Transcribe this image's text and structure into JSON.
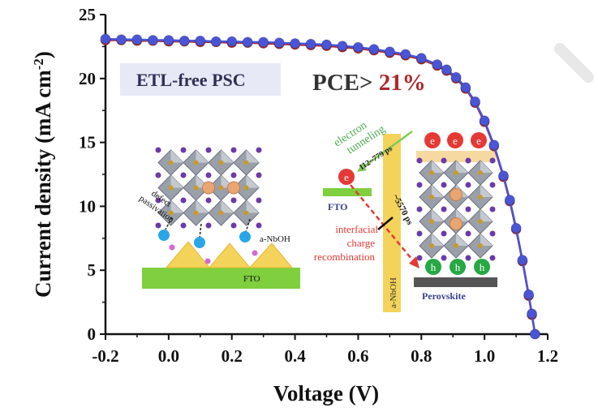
{
  "chart_data": {
    "type": "scatter",
    "xlabel": "Voltage (V)",
    "ylabel_main": "Current density (mA cm",
    "ylabel_sup": "-2",
    "ylabel_close": ")",
    "xlim": [
      -0.2,
      1.2
    ],
    "ylim": [
      0,
      25
    ],
    "xticks": [
      -0.2,
      0.0,
      0.2,
      0.4,
      0.6,
      0.8,
      1.0,
      1.2
    ],
    "xtick_labels": [
      "-0.2",
      "0.0",
      "0.2",
      "0.4",
      "0.6",
      "0.8",
      "1.0",
      "1.2"
    ],
    "yticks": [
      0,
      5,
      10,
      15,
      20,
      25
    ],
    "ytick_labels": [
      "0",
      "5",
      "10",
      "15",
      "20",
      "25"
    ],
    "grid": false,
    "series": [
      {
        "color": "#b0282c",
        "x": [
          -0.2,
          -0.15,
          -0.1,
          -0.05,
          0.0,
          0.05,
          0.1,
          0.15,
          0.2,
          0.25,
          0.3,
          0.35,
          0.4,
          0.45,
          0.5,
          0.55,
          0.6,
          0.65,
          0.7,
          0.75,
          0.8,
          0.85,
          0.88,
          0.91,
          0.94,
          0.97,
          1.0,
          1.03,
          1.06,
          1.08,
          1.1,
          1.12,
          1.14,
          1.15,
          1.16
        ],
        "y": [
          23.0,
          23.0,
          22.95,
          22.95,
          22.9,
          22.9,
          22.85,
          22.85,
          22.8,
          22.8,
          22.75,
          22.7,
          22.65,
          22.6,
          22.55,
          22.45,
          22.35,
          22.2,
          22.0,
          21.8,
          21.5,
          21.0,
          20.6,
          20.0,
          19.2,
          18.1,
          16.6,
          14.7,
          12.3,
          10.4,
          8.2,
          5.7,
          3.0,
          1.5,
          0.0
        ]
      },
      {
        "color": "#4a55d6",
        "x": [
          -0.2,
          -0.15,
          -0.1,
          -0.05,
          0.0,
          0.05,
          0.1,
          0.15,
          0.2,
          0.25,
          0.3,
          0.35,
          0.4,
          0.45,
          0.5,
          0.55,
          0.6,
          0.65,
          0.7,
          0.75,
          0.8,
          0.85,
          0.88,
          0.91,
          0.94,
          0.97,
          1.0,
          1.03,
          1.06,
          1.08,
          1.1,
          1.12,
          1.14,
          1.15,
          1.16
        ],
        "y": [
          23.1,
          23.05,
          23.05,
          23.0,
          23.0,
          22.95,
          22.95,
          22.9,
          22.9,
          22.85,
          22.85,
          22.8,
          22.75,
          22.7,
          22.65,
          22.55,
          22.45,
          22.3,
          22.1,
          21.9,
          21.6,
          21.1,
          20.7,
          20.1,
          19.3,
          18.2,
          16.7,
          14.8,
          12.4,
          10.5,
          8.3,
          5.8,
          3.1,
          1.6,
          0.0
        ]
      }
    ],
    "legend_text": "ETL-free PSC",
    "pce_prefix": "PCE> ",
    "pce_value": "21%",
    "inset_left": {
      "label_defect": "defect",
      "label_passivation": "passivation",
      "label_anboh": "a-NbOH",
      "label_fto": "FTO"
    },
    "inset_right": {
      "electron_label": "electron",
      "tunneling_label": "tunneling",
      "tunneling_time": "112~779 ps",
      "fto_label": "FTO",
      "recomb_time": "~5570 ps",
      "interfacial_label": "interfacial",
      "charge_label": "charge",
      "recombination_label": "recombination",
      "anboh_label": "a-NbOH",
      "perovskite_label": "Perovskite",
      "e_symbol": "e",
      "h_symbol": "h"
    },
    "colors": {
      "red": "#b0282c",
      "blue": "#4a55d6",
      "green_layer": "#7fcf3e",
      "yellow": "#f4d35a",
      "anno_red": "#e53935",
      "anno_green": "#4caf50",
      "navy": "#3a3f8f"
    }
  }
}
